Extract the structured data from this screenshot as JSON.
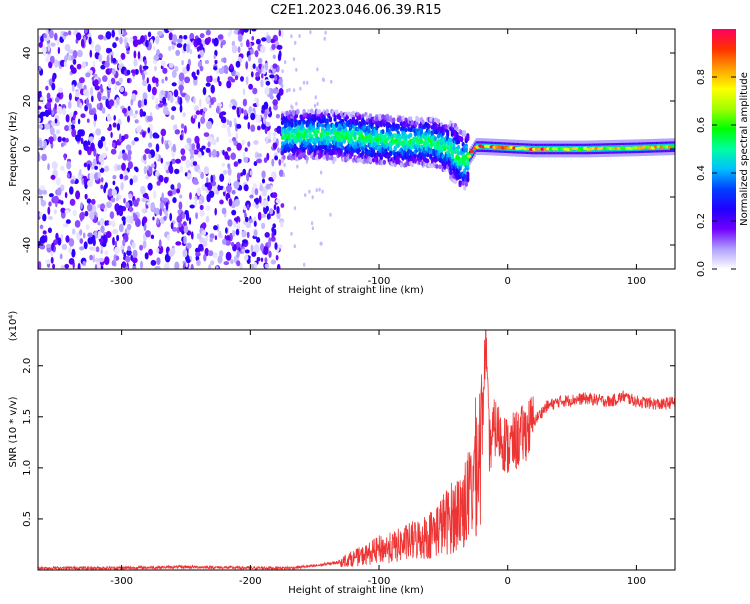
{
  "title": "C2E1.2023.046.06.39.R15",
  "chart_data": [
    {
      "type": "heatmap",
      "xlabel": "Height of straight line (km)",
      "ylabel": "Frequency (Hz)",
      "xlim": [
        -365,
        130
      ],
      "ylim": [
        -50,
        50
      ],
      "x_ticks": [
        -300,
        -200,
        -100,
        0,
        100
      ],
      "y_ticks": [
        -40,
        -20,
        0,
        20,
        40
      ],
      "colorbar": {
        "label": "Normalized spectral amplitude",
        "range": [
          0,
          1
        ],
        "ticks": [
          0.0,
          0.2,
          0.4,
          0.6,
          0.8
        ],
        "tick_labels": [
          "0.0",
          "0.2",
          "0.4",
          "0.6",
          "0.8"
        ],
        "colors": [
          "#ffffff",
          "#b0a0ff",
          "#7000ff",
          "#2000ff",
          "#0040ff",
          "#00c0ff",
          "#00ffa0",
          "#00ff00",
          "#a0ff00",
          "#ffff00",
          "#ffa000",
          "#ff3000",
          "#ff0060"
        ]
      },
      "regions": [
        {
          "x_range": [
            -365,
            -175
          ],
          "freq_range": [
            -50,
            50
          ],
          "amplitude": 0.1,
          "pattern": "diffuse noise"
        },
        {
          "x_range": [
            -175,
            -30
          ],
          "freq_range": [
            -12,
            18
          ],
          "amplitude": 0.4,
          "pattern": "band"
        },
        {
          "x_range": [
            -30,
            130
          ],
          "freq_range": [
            -2,
            4
          ],
          "amplitude": 0.85,
          "pattern": "narrow carrier"
        }
      ],
      "ridge": {
        "x": [
          -175,
          -160,
          -140,
          -120,
          -100,
          -80,
          -60,
          -45,
          -35,
          -30,
          -25,
          -20,
          0,
          20,
          60,
          100,
          130
        ],
        "freq": [
          5,
          6,
          6,
          5,
          4,
          3,
          3,
          0,
          -5,
          -3,
          1,
          1,
          0.5,
          0,
          0,
          0.5,
          1
        ]
      }
    },
    {
      "type": "line",
      "xlabel": "Height of straight line (km)",
      "ylabel": "SNR (10 * v/v)",
      "multiplier": "(x10⁴)",
      "xlim": [
        -365,
        130
      ],
      "ylim": [
        0,
        2.35
      ],
      "x_ticks": [
        -300,
        -200,
        -100,
        0,
        100
      ],
      "y_ticks": [
        0.5,
        1.0,
        1.5,
        2.0
      ],
      "y_tick_labels": [
        "0.5",
        "1.0",
        "1.5",
        "2.0"
      ],
      "color": "#ee3333",
      "x": [
        -365,
        -300,
        -250,
        -200,
        -170,
        -150,
        -130,
        -110,
        -100,
        -90,
        -70,
        -60,
        -50,
        -40,
        -30,
        -25,
        -20,
        -17,
        -16,
        -15,
        -14,
        -13,
        -10,
        0,
        10,
        20,
        30,
        40,
        60,
        80,
        90,
        100,
        120,
        130
      ],
      "y": [
        0.02,
        0.02,
        0.03,
        0.02,
        0.02,
        0.04,
        0.08,
        0.15,
        0.2,
        0.22,
        0.3,
        0.35,
        0.45,
        0.55,
        0.7,
        1.0,
        1.3,
        2.35,
        1.8,
        1.4,
        1.2,
        1.25,
        1.4,
        1.2,
        1.3,
        1.45,
        1.6,
        1.65,
        1.68,
        1.65,
        1.7,
        1.65,
        1.62,
        1.65
      ]
    }
  ]
}
